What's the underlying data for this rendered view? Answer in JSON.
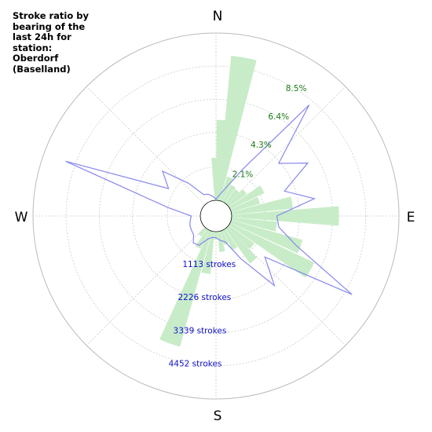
{
  "chart_data": {
    "type": "polar",
    "title_lines": [
      "Stroke ratio by",
      "bearing of the",
      "last 24h for",
      "station:",
      "Oberdorf",
      "(Baselland)"
    ],
    "direction_labels": {
      "north": "N",
      "east": "E",
      "south": "S",
      "west": "W"
    },
    "grid": true,
    "bar_series": {
      "quantity": "stroke ratio (%)",
      "color": "#c8ecc8",
      "ticks": [
        {
          "value": 2.1,
          "label": "2.1%"
        },
        {
          "value": 4.3,
          "label": "4.3%"
        },
        {
          "value": 6.4,
          "label": "6.4%"
        },
        {
          "value": 8.5,
          "label": "8.5%"
        }
      ],
      "tick_color": "#1a7a1a",
      "rmax": 10.6,
      "bars": [
        {
          "bearing": 0,
          "value": 2.7
        },
        {
          "bearing": 5,
          "value": 5.1
        },
        {
          "bearing": 10,
          "value": 9.2
        },
        {
          "bearing": 20,
          "value": 1.6
        },
        {
          "bearing": 30,
          "value": 1.2
        },
        {
          "bearing": 40,
          "value": 1.1
        },
        {
          "bearing": 50,
          "value": 1.4
        },
        {
          "bearing": 60,
          "value": 2.4
        },
        {
          "bearing": 70,
          "value": 1.9
        },
        {
          "bearing": 80,
          "value": 3.9
        },
        {
          "bearing": 90,
          "value": 6.8
        },
        {
          "bearing": 100,
          "value": 2.9
        },
        {
          "bearing": 110,
          "value": 4.7
        },
        {
          "bearing": 120,
          "value": 5.9
        },
        {
          "bearing": 130,
          "value": 2.0
        },
        {
          "bearing": 140,
          "value": 2.7
        },
        {
          "bearing": 150,
          "value": 1.4
        },
        {
          "bearing": 160,
          "value": 0.9
        },
        {
          "bearing": 170,
          "value": 1.3
        },
        {
          "bearing": 180,
          "value": 0.5
        },
        {
          "bearing": 190,
          "value": 2.7
        },
        {
          "bearing": 200,
          "value": 7.6
        },
        {
          "bearing": 210,
          "value": 1.3
        },
        {
          "bearing": 220,
          "value": 0.6
        }
      ]
    },
    "line_series": {
      "quantity": "strokes",
      "color": "#8888ee",
      "ticks": [
        {
          "value": 1113,
          "label": "1113 strokes"
        },
        {
          "value": 2226,
          "label": "2226 strokes"
        },
        {
          "value": 3339,
          "label": "3339 strokes"
        },
        {
          "value": 4452,
          "label": "4452 strokes"
        }
      ],
      "tick_color": "#1010cc",
      "rmax": 5565,
      "points": [
        {
          "bearing": 0,
          "value": 40
        },
        {
          "bearing": 10,
          "value": 200
        },
        {
          "bearing": 20,
          "value": 500
        },
        {
          "bearing": 30,
          "value": 1300
        },
        {
          "bearing": 40,
          "value": 4300
        },
        {
          "bearing": 50,
          "value": 2200
        },
        {
          "bearing": 60,
          "value": 3000
        },
        {
          "bearing": 70,
          "value": 1900
        },
        {
          "bearing": 80,
          "value": 2800
        },
        {
          "bearing": 90,
          "value": 1500
        },
        {
          "bearing": 100,
          "value": 1600
        },
        {
          "bearing": 110,
          "value": 2300
        },
        {
          "bearing": 120,
          "value": 4700
        },
        {
          "bearing": 130,
          "value": 1600
        },
        {
          "bearing": 140,
          "value": 2500
        },
        {
          "bearing": 150,
          "value": 1100
        },
        {
          "bearing": 160,
          "value": 400
        },
        {
          "bearing": 170,
          "value": 300
        },
        {
          "bearing": 180,
          "value": 200
        },
        {
          "bearing": 190,
          "value": 200
        },
        {
          "bearing": 200,
          "value": 300
        },
        {
          "bearing": 210,
          "value": 600
        },
        {
          "bearing": 220,
          "value": 650
        },
        {
          "bearing": 230,
          "value": 450
        },
        {
          "bearing": 240,
          "value": 420
        },
        {
          "bearing": 250,
          "value": 400
        },
        {
          "bearing": 260,
          "value": 350
        },
        {
          "bearing": 270,
          "value": 300
        },
        {
          "bearing": 280,
          "value": 1100
        },
        {
          "bearing": 290,
          "value": 4800
        },
        {
          "bearing": 300,
          "value": 1300
        },
        {
          "bearing": 310,
          "value": 1800
        },
        {
          "bearing": 320,
          "value": 900
        },
        {
          "bearing": 330,
          "value": 300
        },
        {
          "bearing": 340,
          "value": 250
        },
        {
          "bearing": 350,
          "value": 150
        }
      ]
    }
  }
}
